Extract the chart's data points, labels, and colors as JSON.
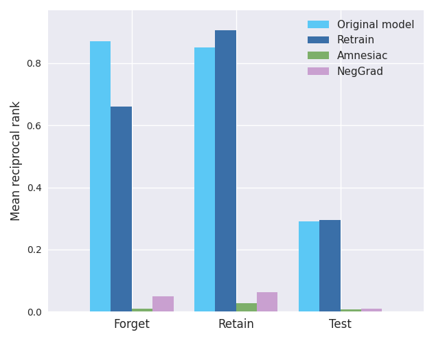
{
  "groups": [
    "Forget",
    "Retain",
    "Test"
  ],
  "series": [
    {
      "label": "Original model",
      "color": "#5BC8F5",
      "values": [
        0.87,
        0.85,
        0.29
      ]
    },
    {
      "label": "Retrain",
      "color": "#3A6FA8",
      "values": [
        0.66,
        0.905,
        0.295
      ]
    },
    {
      "label": "Amnesiac",
      "color": "#7DAF6A",
      "values": [
        0.01,
        0.028,
        0.008
      ]
    },
    {
      "label": "NegGrad",
      "color": "#C9A0D0",
      "values": [
        0.05,
        0.062,
        0.01
      ]
    }
  ],
  "ylabel": "Mean reciprocal rank",
  "ylim": [
    0.0,
    0.97
  ],
  "bar_width": 0.2,
  "group_positions": [
    0.0,
    1.0,
    2.0
  ],
  "legend_loc": "upper right",
  "figsize": [
    6.32,
    4.96
  ],
  "dpi": 100,
  "xtick_fontsize": 12,
  "ytick_fontsize": 10,
  "ylabel_fontsize": 12,
  "legend_fontsize": 11
}
